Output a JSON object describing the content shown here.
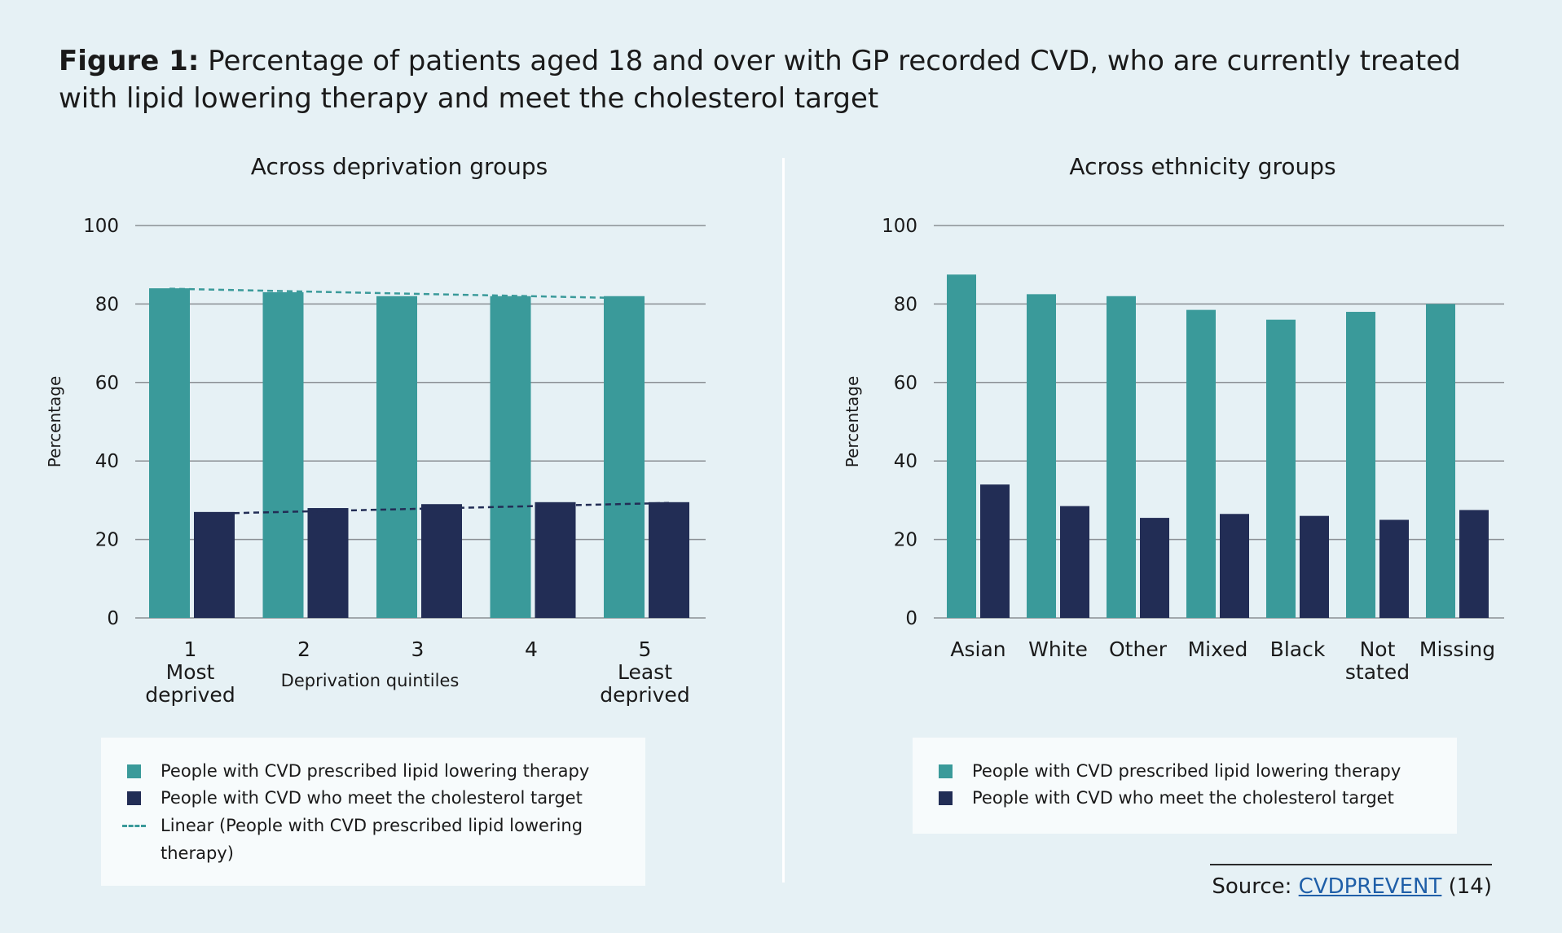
{
  "title": {
    "bold": "Figure 1:",
    "text": "Percentage of patients aged 18 and over with GP recorded CVD, who are currently treated with lipid lowering therapy and meet the cholesterol target"
  },
  "colors": {
    "teal": "#3a9a9a",
    "navy": "#222d55",
    "grid": "#8a8f94"
  },
  "legends": {
    "left": [
      "People with CVD prescribed lipid lowering therapy",
      "People with CVD who meet the cholesterol target",
      "Linear (People with CVD prescribed lipid lowering therapy)"
    ],
    "right": [
      "People with CVD prescribed lipid lowering therapy",
      "People with CVD who meet the cholesterol target"
    ]
  },
  "source": {
    "prefix": "Source:",
    "link": "CVDPREVENT",
    "suffix": "(14)"
  },
  "chart_data": [
    {
      "type": "bar",
      "title": "Across deprivation groups",
      "xlabel": "Deprivation quintiles",
      "ylabel": "Percentage",
      "ylim": [
        0,
        100
      ],
      "yticks": [
        0,
        20,
        40,
        60,
        80,
        100
      ],
      "grid": true,
      "categories": [
        [
          "1",
          "Most",
          "deprived"
        ],
        [
          "2"
        ],
        [
          "3"
        ],
        [
          "4"
        ],
        [
          "5",
          "Least",
          "deprived"
        ]
      ],
      "series": [
        {
          "name": "People with CVD prescribed lipid lowering therapy",
          "color": "#3a9a9a",
          "values": [
            84,
            83,
            82,
            82,
            82
          ]
        },
        {
          "name": "People with CVD who meet the cholesterol target",
          "color": "#222d55",
          "values": [
            27,
            28,
            29,
            29.5,
            29.5
          ]
        }
      ],
      "trendlines": [
        {
          "series": 0,
          "color": "#3a9a9a",
          "start": 83.9,
          "end": 81.5
        },
        {
          "series": 1,
          "color": "#222d55",
          "start": 26.6,
          "end": 29.3
        }
      ]
    },
    {
      "type": "bar",
      "title": "Across ethnicity groups",
      "ylabel": "Percentage",
      "ylim": [
        0,
        100
      ],
      "yticks": [
        0,
        20,
        40,
        60,
        80,
        100
      ],
      "grid": true,
      "categories": [
        [
          "Asian"
        ],
        [
          "White"
        ],
        [
          "Other"
        ],
        [
          "Mixed"
        ],
        [
          "Black"
        ],
        [
          "Not",
          "stated"
        ],
        [
          "Missing"
        ]
      ],
      "series": [
        {
          "name": "People with CVD prescribed lipid lowering therapy",
          "color": "#3a9a9a",
          "values": [
            87.5,
            82.5,
            82,
            78.5,
            76,
            78,
            80
          ]
        },
        {
          "name": "People with CVD who meet the cholesterol target",
          "color": "#222d55",
          "values": [
            34,
            28.5,
            25.5,
            26.5,
            26,
            25,
            27.5
          ]
        }
      ]
    }
  ]
}
